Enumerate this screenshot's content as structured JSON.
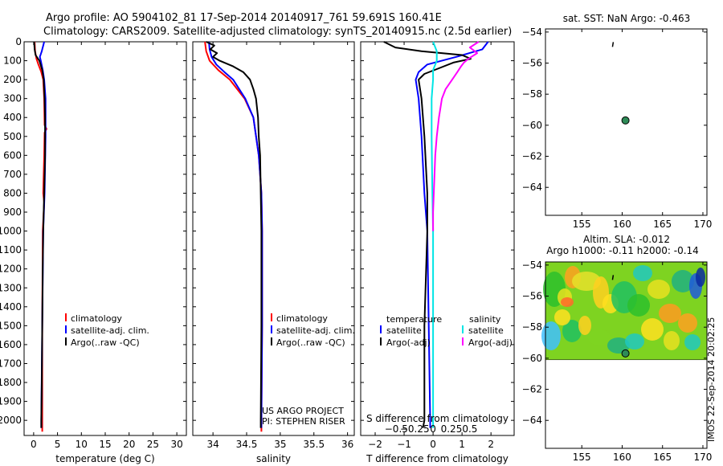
{
  "header": {
    "line1": "Argo profile: AO 5904102_81 17-Sep-2014 20140917_761 59.691S 160.41E",
    "line2": "Climatology: CARS2009. Satellite-adjusted climatology: synTS_20140915.nc (2.5d earlier)"
  },
  "side_text": "IMOS 22-Sep-2014 20:02:25",
  "colors": {
    "climatology": "#ff0000",
    "satellite": "#0000ff",
    "argo": "#000000",
    "salinity_satellite": "#00e5e5",
    "salinity_argo": "#ff00ff",
    "marker": "#2e8b57"
  },
  "chart_data": [
    {
      "id": "temperature",
      "type": "line",
      "xlabel": "temperature (deg C)",
      "xlim": [
        -2,
        32
      ],
      "xticks": [
        0,
        5,
        10,
        15,
        20,
        25,
        30
      ],
      "xtick_labels": [
        "0",
        "5",
        "10",
        "15",
        "20",
        "25",
        "30"
      ],
      "ylim": [
        2080,
        0
      ],
      "yticks": [
        0,
        100,
        200,
        300,
        400,
        500,
        600,
        700,
        800,
        900,
        1000,
        1100,
        1200,
        1300,
        1400,
        1500,
        1600,
        1700,
        1800,
        1900,
        2000
      ],
      "legend": {
        "placement": "lower-middle",
        "entries": [
          {
            "label": "climatology",
            "color": "#ff0000"
          },
          {
            "label": "satellite-adj. clim.",
            "color": "#0000ff"
          },
          {
            "label": "Argo(..raw -QC)",
            "color": "#000000"
          }
        ]
      },
      "series": [
        {
          "name": "climatology",
          "color": "#ff0000",
          "depth": [
            0,
            50,
            90,
            120,
            160,
            200,
            300,
            440,
            460,
            480,
            600,
            800,
            850,
            1000,
            1500,
            2000,
            2060
          ],
          "values": [
            0.2,
            0.3,
            0.6,
            1.0,
            1.6,
            2.0,
            2.2,
            2.3,
            2.7,
            2.3,
            2.2,
            2.0,
            2.2,
            1.9,
            1.8,
            1.8,
            1.8
          ]
        },
        {
          "name": "satellite-adj. clim.",
          "color": "#0000ff",
          "depth": [
            0,
            20,
            50,
            80,
            100,
            150,
            200,
            300,
            500,
            800,
            1000,
            1500,
            2000,
            2040
          ],
          "values": [
            2.2,
            2.0,
            1.7,
            1.3,
            1.5,
            1.9,
            2.2,
            2.5,
            2.5,
            2.3,
            2.0,
            1.8,
            1.6,
            1.6
          ]
        },
        {
          "name": "Argo(..raw -QC)",
          "color": "#000000",
          "depth": [
            0,
            40,
            70,
            100,
            150,
            200,
            300,
            400,
            600,
            800,
            1000,
            1200,
            1500,
            1800,
            2000,
            2040
          ],
          "values": [
            0.1,
            0.2,
            0.4,
            1.2,
            1.8,
            2.1,
            2.3,
            2.4,
            2.4,
            2.2,
            2.0,
            1.9,
            1.8,
            1.7,
            1.6,
            1.6
          ]
        }
      ]
    },
    {
      "id": "salinity",
      "type": "line",
      "xlabel": "salinity",
      "xlim": [
        33.7,
        36.1
      ],
      "xticks": [
        34,
        34.5,
        35,
        35.5,
        36
      ],
      "xtick_labels": [
        "34",
        "34.5",
        "35",
        "35.5",
        "36"
      ],
      "ylim": [
        2080,
        0
      ],
      "legend": {
        "placement": "lower-right",
        "entries": [
          {
            "label": "climatology",
            "color": "#ff0000"
          },
          {
            "label": "satellite-adj. clim.",
            "color": "#0000ff"
          },
          {
            "label": "Argo(..raw -QC)",
            "color": "#000000"
          }
        ]
      },
      "annotation": [
        "US ARGO PROJECT",
        "PI: STEPHEN RISER"
      ],
      "series": [
        {
          "name": "climatology",
          "color": "#ff0000",
          "depth": [
            0,
            50,
            100,
            150,
            200,
            300,
            400,
            600,
            800,
            1000,
            1500,
            2000,
            2060
          ],
          "values": [
            33.88,
            33.9,
            33.95,
            34.08,
            34.25,
            34.47,
            34.6,
            34.68,
            34.72,
            34.73,
            34.73,
            34.72,
            34.72
          ]
        },
        {
          "name": "satellite-adj. clim.",
          "color": "#0000ff",
          "depth": [
            0,
            40,
            80,
            120,
            160,
            200,
            300,
            400,
            600,
            800,
            1000,
            1500,
            2000,
            2040
          ],
          "values": [
            33.94,
            33.95,
            33.98,
            34.05,
            34.17,
            34.3,
            34.48,
            34.6,
            34.68,
            34.72,
            34.73,
            34.73,
            34.72,
            34.72
          ]
        },
        {
          "name": "Argo(..raw -QC)",
          "color": "#000000",
          "depth": [
            0,
            20,
            40,
            60,
            80,
            100,
            130,
            160,
            200,
            250,
            300,
            400,
            500,
            600,
            800,
            1000,
            1500,
            2000,
            2040
          ],
          "values": [
            33.9,
            34.02,
            33.96,
            34.06,
            34.0,
            34.1,
            34.3,
            34.45,
            34.55,
            34.6,
            34.64,
            34.67,
            34.68,
            34.7,
            34.71,
            34.72,
            34.72,
            34.71,
            34.71
          ]
        }
      ]
    },
    {
      "id": "difference",
      "type": "line",
      "xlabel": "T difference from climatology",
      "x2label": "S difference from climatology",
      "xlim": [
        -2.5,
        2.8
      ],
      "xticks": [
        -2,
        -1,
        0,
        1,
        2
      ],
      "xtick_labels": [
        "−2",
        "−1",
        "0",
        "1",
        "2"
      ],
      "x2ticks": [
        -0.5,
        -0.25,
        0,
        0.25,
        0.5
      ],
      "x2tick_labels": [
        "−0.5",
        "−0.25",
        "0",
        "0.25",
        "0.5"
      ],
      "ylim": [
        2080,
        0
      ],
      "legend": {
        "placement": "lower-middle",
        "headers": [
          "temperature",
          "salinity"
        ],
        "entries": [
          {
            "label": "satellite",
            "color": "#0000ff"
          },
          {
            "label": "Argo(-adj)",
            "color": "#000000"
          },
          {
            "label": "satellite",
            "color": "#00e5e5"
          },
          {
            "label": "Argo(-adj)",
            "color": "#ff00ff"
          }
        ]
      },
      "series": [
        {
          "name": "temperature satellite",
          "color": "#0000ff",
          "depth": [
            0,
            40,
            80,
            120,
            160,
            200,
            300,
            500,
            800,
            1000,
            1500,
            2000,
            2040
          ],
          "values": [
            1.9,
            1.7,
            0.8,
            -0.2,
            -0.5,
            -0.6,
            -0.5,
            -0.4,
            -0.3,
            -0.2,
            -0.15,
            -0.1,
            -0.1
          ]
        },
        {
          "name": "temperature Argo(-adj)",
          "color": "#000000",
          "depth": [
            0,
            30,
            50,
            70,
            90,
            110,
            140,
            170,
            200,
            300,
            500,
            800,
            1000,
            1500,
            2000,
            2040
          ],
          "values": [
            -1.7,
            -1.3,
            -0.4,
            1.0,
            1.3,
            0.7,
            0.2,
            -0.3,
            -0.5,
            -0.4,
            -0.3,
            -0.2,
            -0.2,
            -0.3,
            -0.3,
            -0.35
          ]
        },
        {
          "name": "salinity satellite",
          "color": "#00e5e5",
          "depth": [
            0,
            50,
            100,
            150,
            200,
            300,
            500,
            800,
            1000,
            1500,
            2000,
            2040
          ],
          "values": [
            0.0,
            0.05,
            0.05,
            0.0,
            0.0,
            -0.02,
            -0.02,
            -0.01,
            0.0,
            0.0,
            0.0,
            0.0
          ]
        },
        {
          "name": "salinity Argo(-adj)",
          "color": "#ff00ff",
          "depth": [
            0,
            30,
            60,
            90,
            110,
            130,
            160,
            200,
            250,
            300,
            400,
            500,
            600,
            800,
            900,
            1000
          ],
          "values": [
            0.62,
            0.5,
            0.6,
            0.48,
            0.42,
            0.38,
            0.33,
            0.26,
            0.17,
            0.12,
            0.08,
            0.05,
            0.03,
            0.01,
            0.0,
            0.0
          ]
        }
      ]
    },
    {
      "id": "sst-map",
      "type": "scatter",
      "title": "sat. SST: NaN Argo: -0.463",
      "xlim": [
        150.5,
        170.5
      ],
      "ylim": [
        -65.8,
        -53.8
      ],
      "xticks": [
        155,
        160,
        165,
        170
      ],
      "yticks": [
        -54,
        -56,
        -58,
        -60,
        -62,
        -64
      ],
      "points": [
        {
          "x": 160.41,
          "y": -59.691,
          "color": "#2e8b57"
        }
      ],
      "marks": [
        {
          "x": 158.9,
          "y": -54.8
        }
      ]
    },
    {
      "id": "sla-map",
      "type": "heatmap",
      "title": [
        "Altim. SLA: -0.012",
        "Argo h1000: -0.11 h2000: -0.14"
      ],
      "xlim": [
        150.5,
        170.5
      ],
      "ylim": [
        -65.8,
        -53.8
      ],
      "xticks": [
        155,
        160,
        165,
        170
      ],
      "yticks": [
        -54,
        -56,
        -58,
        -60,
        -62,
        -64
      ],
      "field_extent": {
        "lat": [
          -60.1,
          -53.8
        ]
      },
      "points": [
        {
          "x": 160.41,
          "y": -59.691,
          "color": "#2e8b57"
        }
      ],
      "marks": [
        {
          "x": 158.9,
          "y": -54.8
        }
      ]
    }
  ]
}
